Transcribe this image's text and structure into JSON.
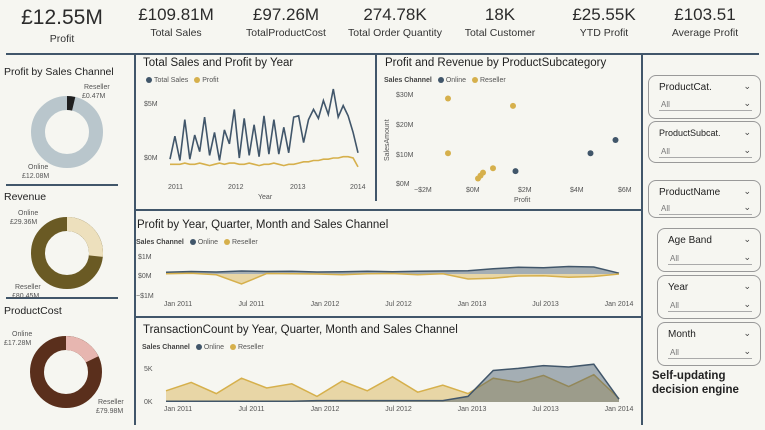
{
  "kpis": [
    {
      "value": "£12.55M",
      "label": "Profit"
    },
    {
      "value": "£109.81M",
      "label": "Total Sales"
    },
    {
      "value": "£97.26M",
      "label": "TotalProductCost"
    },
    {
      "value": "274.78K",
      "label": "Total Order Quantity"
    },
    {
      "value": "18K",
      "label": "Total Customer"
    },
    {
      "value": "£25.55K",
      "label": "YTD Profit"
    },
    {
      "value": "£103.51",
      "label": "Average Profit"
    }
  ],
  "donuts": {
    "profit": {
      "title": "Profit by Sales Channel",
      "label_a": "Reseller",
      "value_a": "£0.47M",
      "label_b": "Online",
      "value_b": "£12.08M",
      "colors": [
        "#1f1f1f",
        "#b9c6cc"
      ],
      "fraction_a": 0.037
    },
    "revenue": {
      "title": "Revenue",
      "label_a": "Online",
      "value_a": "£29.36M",
      "label_b": "Reseller",
      "value_b": "£80.45M",
      "colors": [
        "#ede0bd",
        "#6a5a24"
      ],
      "fraction_a": 0.267
    },
    "cost": {
      "title": "ProductCost",
      "label_a": "Online",
      "value_a": "£17.28M",
      "label_b": "Reseller",
      "value_b": "£79.98M",
      "colors": [
        "#e7b6b0",
        "#5a2f1c"
      ],
      "fraction_a": 0.178
    }
  },
  "charts": {
    "year": {
      "title": "Total Sales and Profit by Year",
      "legend": [
        "Total Sales",
        "Profit"
      ],
      "xticks": [
        "2011",
        "2012",
        "2013",
        "2014"
      ],
      "yticks": [
        "$5M",
        "$0M"
      ],
      "xlabel": "Year"
    },
    "scatter": {
      "title": "Profit and Revenue by ProductSubcategory",
      "legend_title": "Sales Channel",
      "legend": [
        "Online",
        "Reseller"
      ],
      "yticks": [
        "$30M",
        "$20M",
        "$10M",
        "$0M"
      ],
      "xticks": [
        "−$2M",
        "$0M",
        "$2M",
        "$4M",
        "$6M"
      ],
      "ylabel": "SalesAmount",
      "xlabel": "Profit"
    },
    "profit_time": {
      "title": "Profit by Year, Quarter, Month and Sales Channel",
      "legend_title": "Sales Channel",
      "legend": [
        "Online",
        "Reseller"
      ],
      "yticks": [
        "$1M",
        "$0M",
        "−$1M"
      ],
      "xticks": [
        "Jan 2011",
        "Jul 2011",
        "Jan 2012",
        "Jul 2012",
        "Jan 2013",
        "Jul 2013",
        "Jan 2014"
      ]
    },
    "txn": {
      "title": "TransactionCount by Year, Quarter, Month and Sales Channel",
      "legend_title": "Sales Channel",
      "legend": [
        "Online",
        "Reseller"
      ],
      "yticks": [
        "5K",
        "0K"
      ],
      "xticks": [
        "Jan 2011",
        "Jul 2011",
        "Jan 2012",
        "Jul 2012",
        "Jan 2013",
        "Jul 2013",
        "Jan 2014"
      ]
    }
  },
  "slicers": [
    {
      "title": "ProductCat.",
      "value": "All"
    },
    {
      "title": "ProductSubcat.",
      "value": "All"
    },
    {
      "title": "ProductName",
      "value": "All"
    },
    {
      "title": "Age Band",
      "value": "All"
    },
    {
      "title": "Year",
      "value": "All"
    },
    {
      "title": "Month",
      "value": "All"
    }
  ],
  "footer": [
    "Self-updating",
    "decision engine"
  ],
  "colors": {
    "online": "#41566a",
    "reseller": "#d6b04c",
    "rule": "#41566a"
  },
  "chart_data": [
    {
      "type": "line",
      "title": "Total Sales and Profit by Year",
      "xlabel": "Year",
      "ylabel": "",
      "ylim": [
        -0.5,
        6
      ],
      "x": [
        "2010-12",
        "2011-01",
        "2011-02",
        "2011-03",
        "2011-04",
        "2011-05",
        "2011-06",
        "2011-07",
        "2011-08",
        "2011-09",
        "2011-10",
        "2011-11",
        "2011-12",
        "2012-01",
        "2012-02",
        "2012-03",
        "2012-04",
        "2012-05",
        "2012-06",
        "2012-07",
        "2012-08",
        "2012-09",
        "2012-10",
        "2012-11",
        "2012-12",
        "2013-01",
        "2013-02",
        "2013-03",
        "2013-04",
        "2013-05",
        "2013-06",
        "2013-07",
        "2013-08",
        "2013-09",
        "2013-10",
        "2013-11",
        "2013-12",
        "2014-01",
        "2014-02"
      ],
      "series": [
        {
          "name": "Total Sales",
          "values": [
            0.5,
            2.3,
            0.4,
            3.6,
            0.5,
            2.4,
            1.1,
            3.8,
            0.8,
            2.6,
            0.4,
            2.8,
            1.7,
            4.4,
            0.6,
            3.7,
            0.8,
            3.2,
            0.7,
            3.9,
            0.9,
            3.6,
            0.9,
            3.0,
            1.0,
            3.8,
            3.9,
            1.8,
            3.6,
            4.4,
            3.7,
            5.1,
            4.0,
            6.0,
            3.8,
            4.7,
            3.9,
            2.6,
            1.0
          ]
        },
        {
          "name": "Profit",
          "values": [
            0.1,
            0.1,
            0.1,
            0.2,
            0.1,
            0.1,
            0.2,
            0.1,
            0.0,
            0.1,
            0.2,
            0.1,
            0.2,
            0.2,
            0.1,
            0.1,
            0.2,
            0.1,
            0.0,
            0.1,
            0.1,
            0.2,
            0.1,
            0.0,
            0.1,
            0.1,
            0.2,
            0.3,
            0.3,
            0.4,
            0.4,
            0.5,
            0.5,
            0.6,
            0.6,
            0.7,
            0.7,
            0.6,
            -0.1
          ]
        }
      ]
    },
    {
      "type": "scatter",
      "title": "Profit and Revenue by ProductSubcategory",
      "xlabel": "Profit",
      "ylabel": "SalesAmount",
      "xlim": [
        -2,
        6
      ],
      "ylim": [
        0,
        30
      ],
      "series": [
        {
          "name": "Online",
          "points": [
            [
              1.5,
              4
            ],
            [
              4.5,
              10
            ],
            [
              5.5,
              14.5
            ]
          ]
        },
        {
          "name": "Reseller",
          "points": [
            [
              -1.2,
              28.5
            ],
            [
              1.4,
              26
            ],
            [
              -1.2,
              10
            ],
            [
              0.0,
              1.5
            ],
            [
              0.1,
              2.5
            ],
            [
              0.2,
              3.5
            ],
            [
              0.6,
              5
            ]
          ]
        }
      ]
    },
    {
      "type": "area",
      "title": "Profit by Year, Quarter, Month and Sales Channel",
      "ylim": [
        -1.2,
        1.2
      ],
      "x": [
        "2011-01",
        "2011-03",
        "2011-05",
        "2011-07",
        "2011-09",
        "2011-11",
        "2012-01",
        "2012-03",
        "2012-05",
        "2012-07",
        "2012-09",
        "2012-11",
        "2013-01",
        "2013-03",
        "2013-05",
        "2013-07",
        "2013-09",
        "2013-11",
        "2014-01"
      ],
      "series": [
        {
          "name": "Online",
          "values": [
            0.1,
            0.15,
            0.12,
            0.18,
            0.15,
            0.17,
            0.12,
            0.14,
            0.16,
            0.14,
            0.17,
            0.18,
            0.2,
            0.32,
            0.4,
            0.38,
            0.45,
            0.42,
            0.05
          ]
        },
        {
          "name": "Reseller",
          "values": [
            0.02,
            0.05,
            -0.05,
            -0.6,
            0.03,
            0.01,
            0.0,
            -0.05,
            0.02,
            0.03,
            -0.04,
            0.01,
            -0.3,
            -0.25,
            -0.12,
            -0.1,
            -0.2,
            -0.15,
            0.0
          ]
        }
      ]
    },
    {
      "type": "area",
      "title": "TransactionCount by Year, Quarter, Month and Sales Channel",
      "ylim": [
        0,
        6
      ],
      "x": [
        "2011-01",
        "2011-03",
        "2011-05",
        "2011-07",
        "2011-09",
        "2011-11",
        "2012-01",
        "2012-03",
        "2012-05",
        "2012-07",
        "2012-09",
        "2012-11",
        "2013-01",
        "2013-03",
        "2013-05",
        "2013-07",
        "2013-09",
        "2013-11",
        "2014-01"
      ],
      "series": [
        {
          "name": "Online",
          "values": [
            0.1,
            0.1,
            0.1,
            0.1,
            0.1,
            0.1,
            0.2,
            0.2,
            0.2,
            0.2,
            0.2,
            0.2,
            0.8,
            4.5,
            4.8,
            5.2,
            5.0,
            5.4,
            0.4
          ]
        },
        {
          "name": "Reseller",
          "values": [
            1.6,
            2.8,
            1.2,
            3.4,
            2.0,
            2.6,
            0.8,
            3.0,
            1.6,
            3.6,
            1.4,
            2.4,
            1.2,
            3.4,
            2.8,
            3.8,
            2.2,
            3.9,
            0.5
          ]
        }
      ]
    }
  ]
}
